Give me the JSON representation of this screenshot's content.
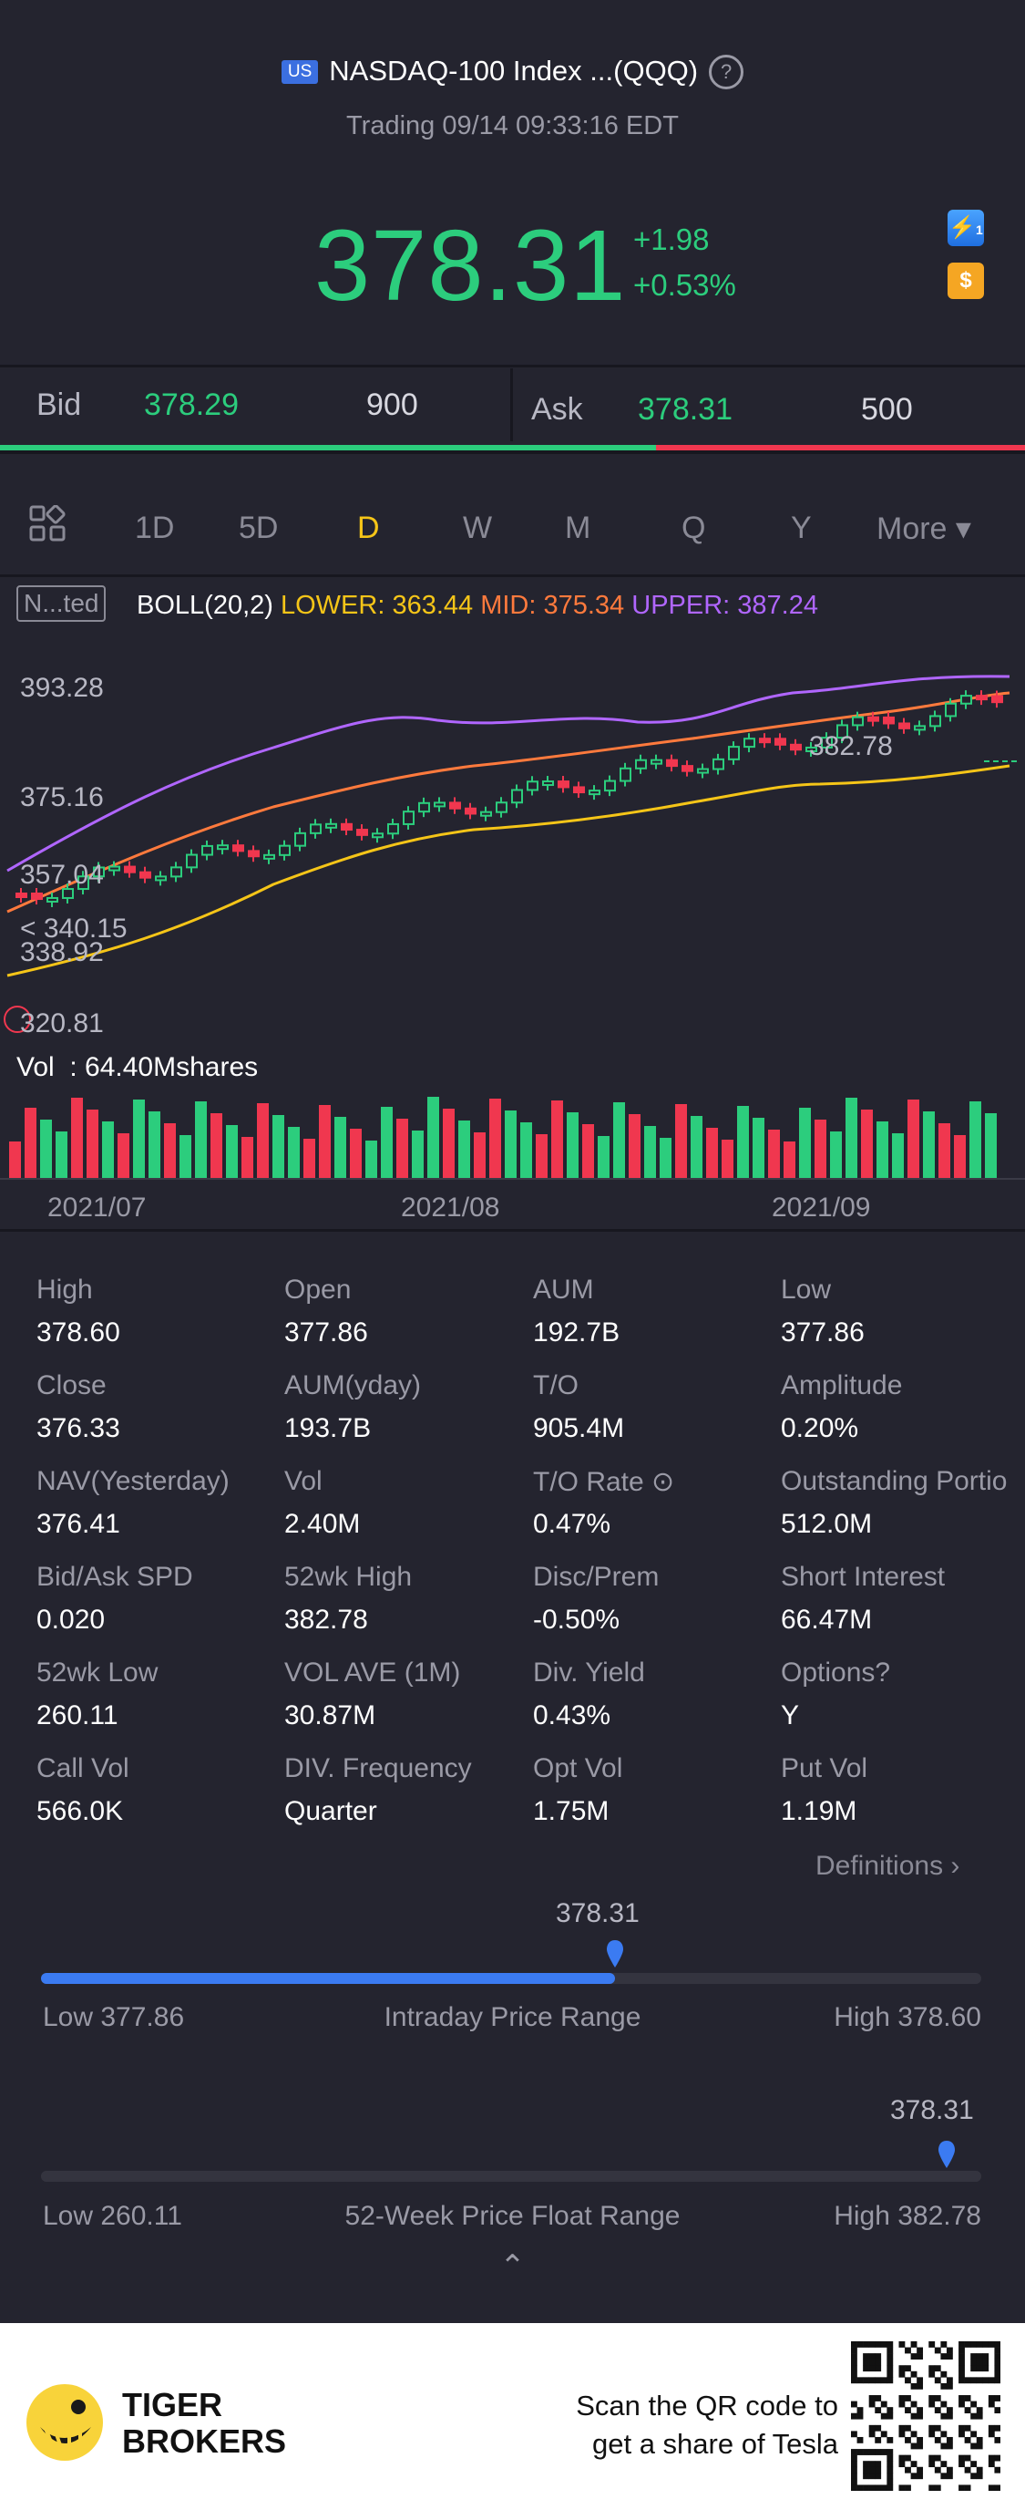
{
  "header": {
    "badge": "US",
    "title": "NASDAQ-100 Index ...(QQQ)",
    "help": "?",
    "subtitle": "Trading 09/14 09:33:16 EDT"
  },
  "quote": {
    "price": "378.31",
    "change": "+1.98",
    "change_pct": "+0.53%",
    "chip1": "⚡",
    "chip1_sub": "1",
    "chip2": "$",
    "color_up": "#2ccd7d",
    "color_down": "#f0374f"
  },
  "bidask": {
    "bid_label": "Bid",
    "bid_price": "378.29",
    "bid_size": "900",
    "ask_label": "Ask",
    "ask_price": "378.31",
    "ask_size": "500",
    "bid_fraction": 0.64
  },
  "periods": {
    "tabs": [
      "1D",
      "5D",
      "D",
      "W",
      "M",
      "Q",
      "Y"
    ],
    "active": "D",
    "more": "More ▾"
  },
  "indicator": {
    "tag": "N...ted",
    "name": "BOLL(20,2)",
    "lower": "LOWER: 363.44",
    "mid": "MID: 375.34",
    "upper": "UPPER: 387.24"
  },
  "chart_labels": {
    "y_top": "393.28",
    "y_mid": "375.16",
    "y_357": "357.04",
    "y_340": "340.15",
    "y_338": "338.92",
    "y_bot": "320.81",
    "high_marker": "382.78",
    "vol": "Vol  : 64.40Mshares",
    "x_ticks": [
      "2021/07",
      "2021/08",
      "2021/09"
    ]
  },
  "stats": [
    [
      {
        "l": "High",
        "v": "378.60"
      },
      {
        "l": "Open",
        "v": "377.86"
      },
      {
        "l": "AUM",
        "v": "192.7B"
      },
      {
        "l": "Low",
        "v": "377.86"
      }
    ],
    [
      {
        "l": "Close",
        "v": "376.33"
      },
      {
        "l": "AUM(yday)",
        "v": "193.7B"
      },
      {
        "l": "T/O",
        "v": "905.4M"
      },
      {
        "l": "Amplitude",
        "v": "0.20%"
      }
    ],
    [
      {
        "l": "NAV(Yesterday)",
        "v": "376.41"
      },
      {
        "l": "Vol",
        "v": "2.40M"
      },
      {
        "l": "T/O Rate ⊙",
        "v": "0.47%"
      },
      {
        "l": "Outstanding Portio",
        "v": "512.0M"
      }
    ],
    [
      {
        "l": "Bid/Ask SPD",
        "v": "0.020"
      },
      {
        "l": "52wk High",
        "v": "382.78"
      },
      {
        "l": "Disc/Prem",
        "v": "-0.50%"
      },
      {
        "l": "Short Interest",
        "v": "66.47M"
      }
    ],
    [
      {
        "l": "52wk Low",
        "v": "260.11"
      },
      {
        "l": "VOL AVE (1M)",
        "v": "30.87M"
      },
      {
        "l": "Div. Yield",
        "v": "0.43%"
      },
      {
        "l": "Options?",
        "v": "Y"
      }
    ],
    [
      {
        "l": "Call Vol",
        "v": "566.0K"
      },
      {
        "l": "DIV. Frequency",
        "v": "Quarter"
      },
      {
        "l": "Opt Vol",
        "v": "1.75M"
      },
      {
        "l": "Put Vol",
        "v": "1.19M"
      }
    ]
  ],
  "definitions": "Definitions ›",
  "intraday": {
    "marker": "378.31",
    "low": "Low 377.86",
    "title": "Intraday Price Range",
    "high": "High 378.60",
    "position": 0.61
  },
  "week52": {
    "marker": "378.31",
    "low": "Low 260.11",
    "title": "52-Week Price Float Range",
    "high": "High 382.78",
    "position": 0.963
  },
  "collapse": "⌃",
  "footer": {
    "brand1": "TIGER",
    "brand2": "BROKERS",
    "cta1": "Scan the QR code to",
    "cta2": "get a share of Tesla"
  }
}
